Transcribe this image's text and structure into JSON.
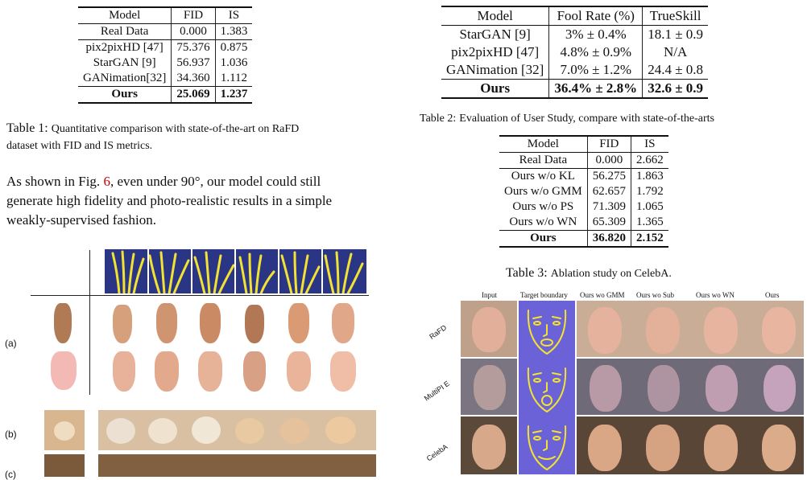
{
  "table1": {
    "header": [
      "Model",
      "FID",
      "IS"
    ],
    "rows": [
      [
        "Real Data",
        "0.000",
        "1.383"
      ],
      [
        "pix2pixHD [47]",
        "75.376",
        "0.875"
      ],
      [
        "StarGAN [9]",
        "56.937",
        "1.036"
      ],
      [
        "GANimation[32]",
        "34.360",
        "1.112"
      ]
    ],
    "last": [
      "Ours",
      "25.069",
      "1.237"
    ],
    "caption_label": "Table 1:",
    "caption_text_l1": "Quantitative comparison with state-of-the-art on RaFD",
    "caption_text_l2": "dataset with FID and IS metrics."
  },
  "paragraph": {
    "pre": "As shown in Fig. ",
    "ref": "6",
    "post": ", even under 90°, our model could still",
    "l2": "generate high fidelity and photo-realistic results in a simple",
    "l3": "weakly-supervised fashion."
  },
  "table2": {
    "header": [
      "Model",
      "Fool Rate (%)",
      "TrueSkill"
    ],
    "rows": [
      [
        "StarGAN [9]",
        "3% ± 0.4%",
        "18.1 ± 0.9"
      ],
      [
        "pix2pixHD [47]",
        "4.8% ± 0.9%",
        "N/A"
      ],
      [
        "GANimation [32]",
        "7.0% ± 1.2%",
        "24.4 ± 0.8"
      ]
    ],
    "last": [
      "Ours",
      "36.4% ± 2.8%",
      "32.6 ± 0.9"
    ],
    "caption_label": "Table 2:",
    "caption_text": "Evaluation of User Study, compare with state-of-the-arts"
  },
  "table3": {
    "header": [
      "Model",
      "FID",
      "IS"
    ],
    "rows": [
      [
        "Real Data",
        "0.000",
        "2.662"
      ],
      [
        "Ours w/o KL",
        "56.275",
        "1.863"
      ],
      [
        "Ours w/o GMM",
        "62.657",
        "1.792"
      ],
      [
        "Ours w/o PS",
        "71.309",
        "1.065"
      ],
      [
        "Ours w/o WN",
        "65.309",
        "1.365"
      ]
    ],
    "last": [
      "Ours",
      "36.820",
      "2.152"
    ],
    "caption_label": "Table 3:",
    "caption_text": "Ablation study on CelebA."
  },
  "figure_left": {
    "label_a": "(a)",
    "label_b": "(b)",
    "label_c": "(c)"
  },
  "figure_right": {
    "columns": [
      "Input",
      "Target boundary",
      "Ours wo GMM",
      "Ours wo Sub",
      "Ours wo WN",
      "Ours"
    ],
    "rows": [
      "RaFD",
      "MultiPI E",
      "CelebA"
    ]
  }
}
